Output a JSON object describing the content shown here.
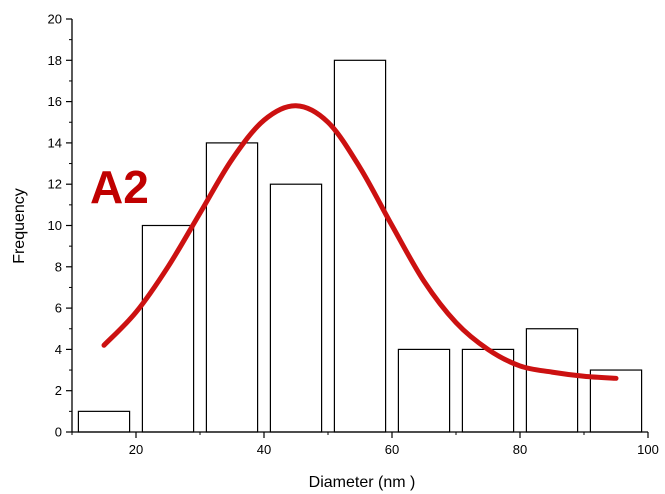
{
  "chart_data": {
    "type": "bar",
    "xlabel": "Diameter (nm )",
    "ylabel": "Frequency",
    "annotation": "A2",
    "xlim": [
      10,
      100
    ],
    "ylim": [
      0,
      20
    ],
    "x_ticks": [
      20,
      40,
      60,
      80,
      100
    ],
    "y_ticks": [
      0,
      2,
      4,
      6,
      8,
      10,
      12,
      14,
      16,
      18,
      20
    ],
    "bars": [
      {
        "x0": 11,
        "x1": 19,
        "value": 1
      },
      {
        "x0": 21,
        "x1": 29,
        "value": 10
      },
      {
        "x0": 31,
        "x1": 39,
        "value": 14
      },
      {
        "x0": 41,
        "x1": 49,
        "value": 12
      },
      {
        "x0": 51,
        "x1": 59,
        "value": 18
      },
      {
        "x0": 61,
        "x1": 69,
        "value": 4
      },
      {
        "x0": 71,
        "x1": 79,
        "value": 4
      },
      {
        "x0": 81,
        "x1": 89,
        "value": 5
      },
      {
        "x0": 91,
        "x1": 99,
        "value": 3
      }
    ],
    "fit_curve": {
      "color": "#cc1111",
      "x": [
        15,
        20,
        25,
        30,
        35,
        40,
        45,
        50,
        55,
        60,
        65,
        70,
        75,
        80,
        85,
        90,
        95
      ],
      "y": [
        4.2,
        5.8,
        8.0,
        10.6,
        13.2,
        15.1,
        15.8,
        15.0,
        12.8,
        10.0,
        7.3,
        5.3,
        4.0,
        3.2,
        2.9,
        2.7,
        2.6
      ]
    },
    "bar_fill": "#ffffff",
    "bar_stroke": "#000000",
    "grid": false,
    "legend": "none"
  }
}
